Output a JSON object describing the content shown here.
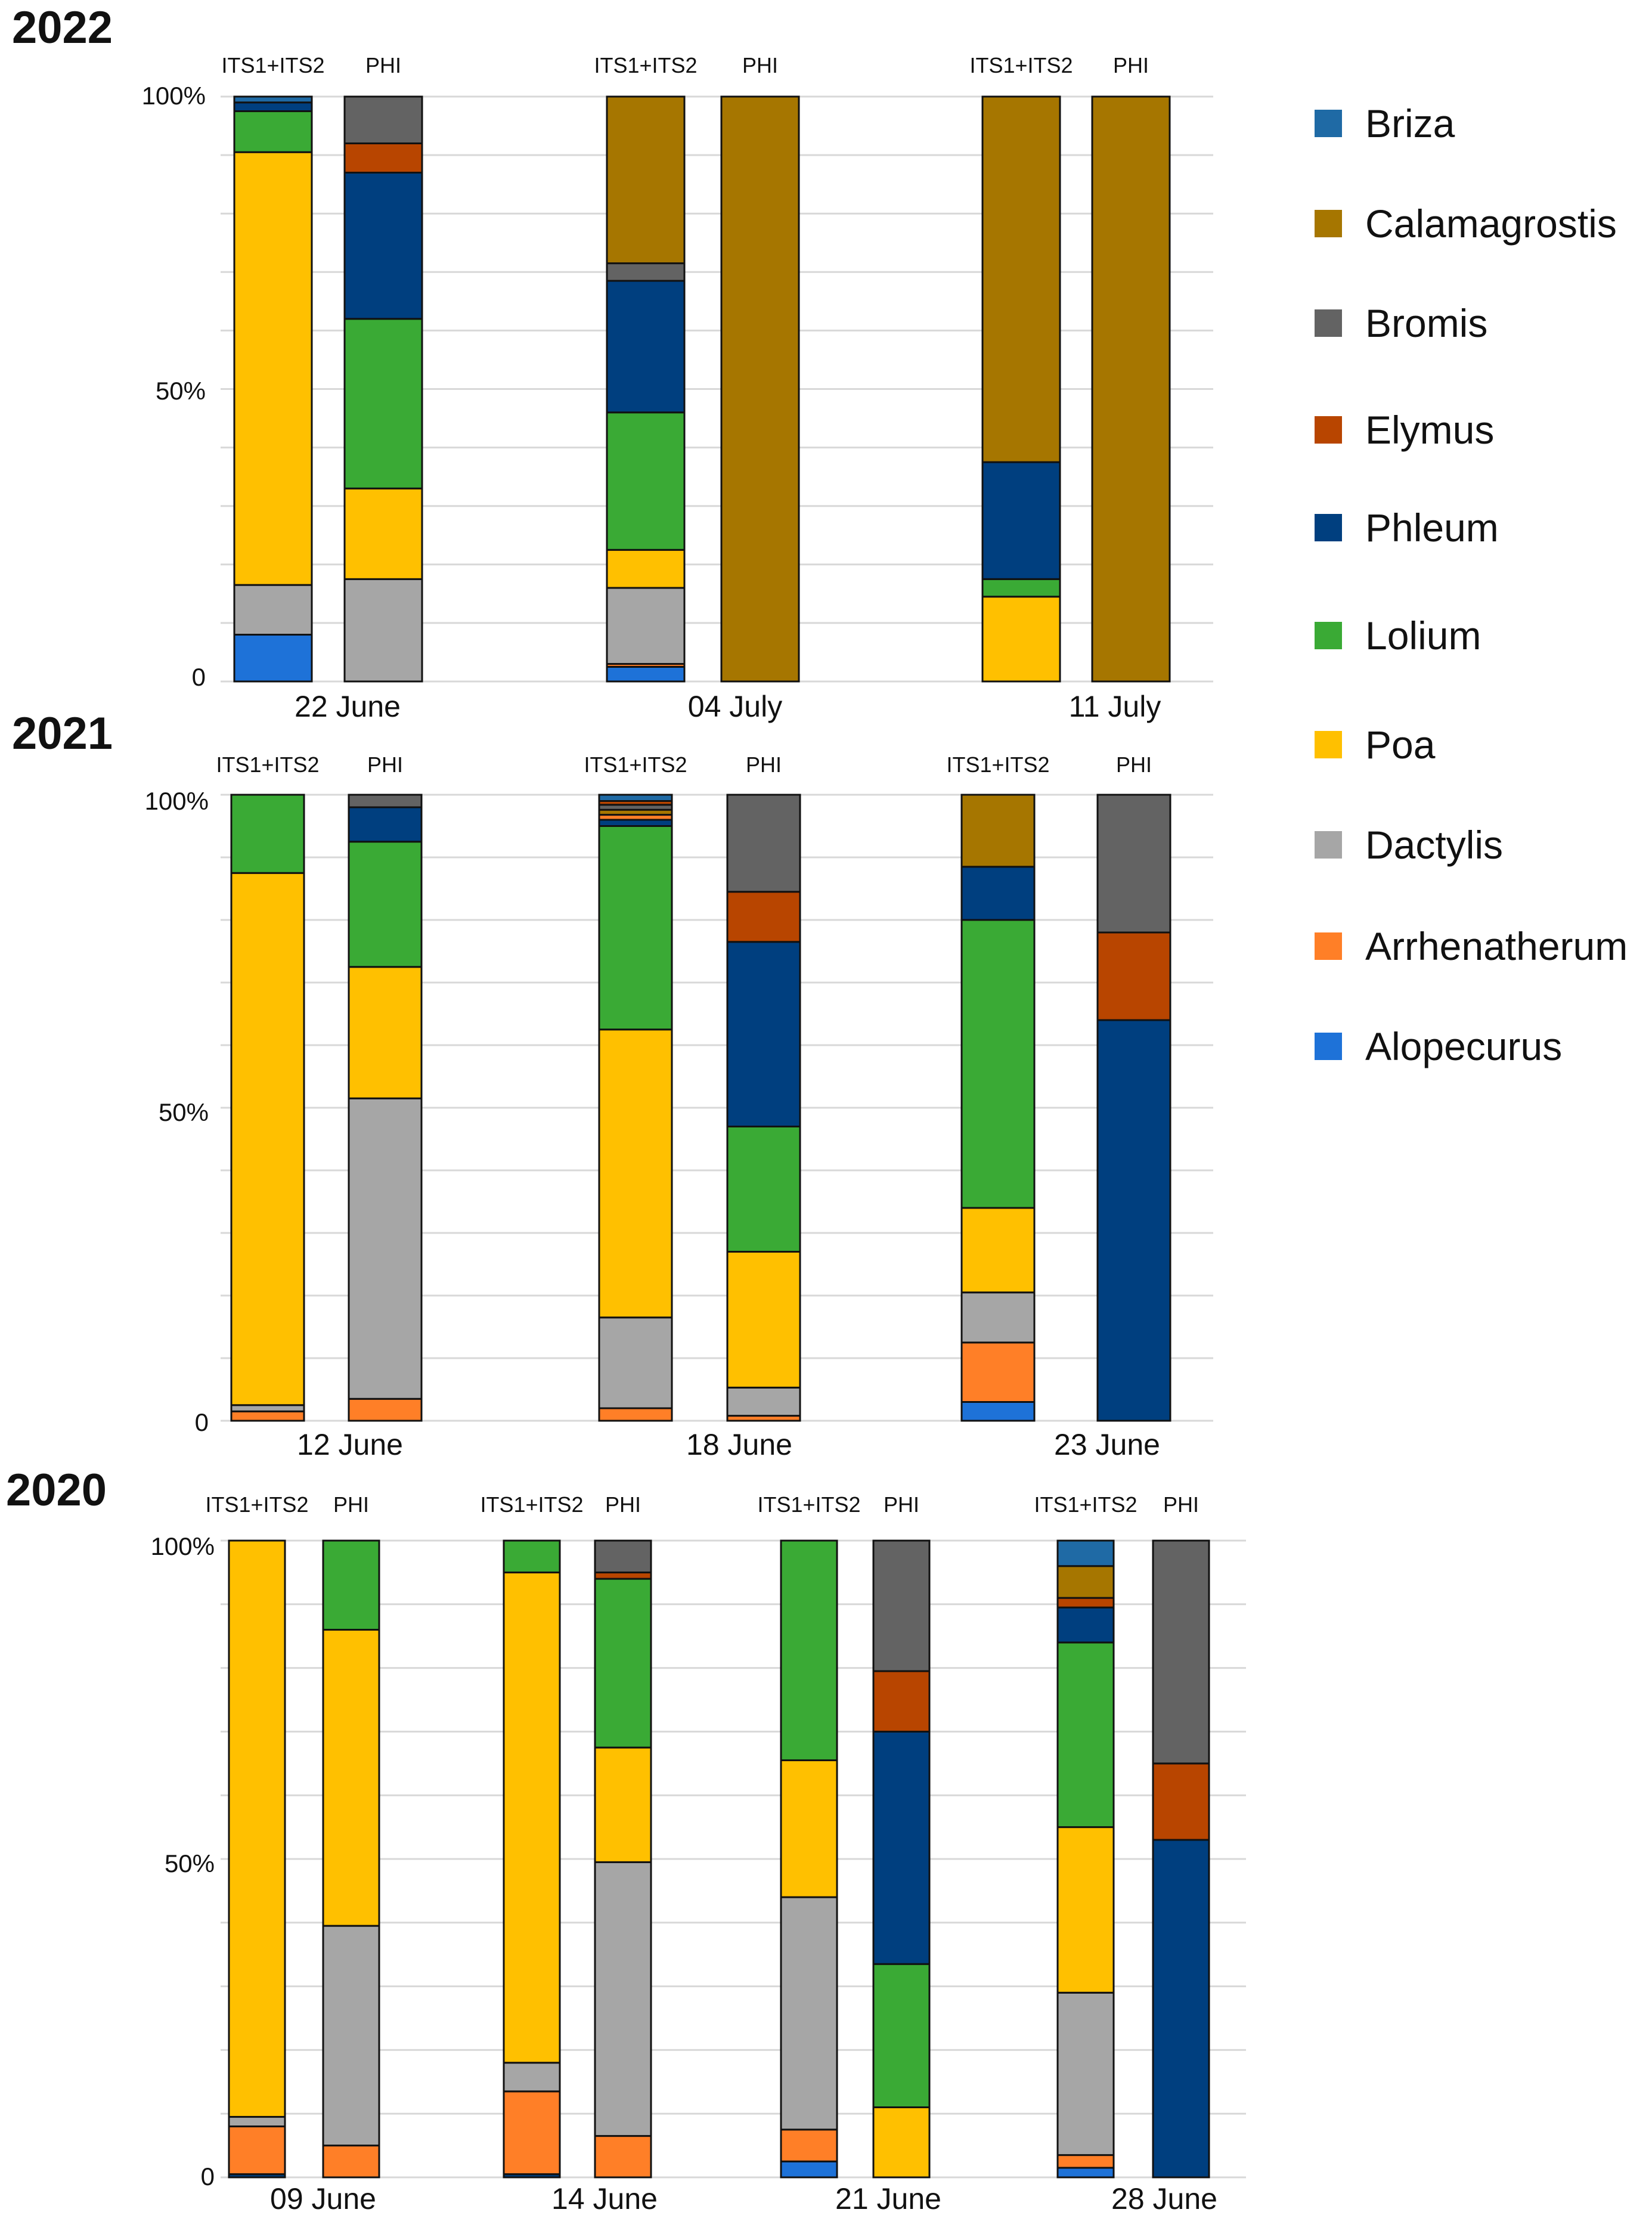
{
  "colors": {
    "Briza": "#1f6aa5",
    "Calamagrostis": "#a67600",
    "Bromis": "#636363",
    "Elymus": "#b84500",
    "Phleum": "#003f7f",
    "Lolium": "#3aaa35",
    "Poa": "#ffc000",
    "Dactylis": "#a6a6a6",
    "Arrhenatherum": "#ff7f27",
    "Alopecurus": "#1e72d8"
  },
  "legend": [
    "Briza",
    "Calamagrostis",
    "Bromis",
    "Elymus",
    "Phleum",
    "Lolium",
    "Poa",
    "Dactylis",
    "Arrhenatherum",
    "Alopecurus"
  ],
  "chart_data": [
    {
      "type": "bar",
      "stacked": true,
      "title": "2022",
      "ylim": [
        0,
        100
      ],
      "yticks": [
        "0",
        "50%",
        "100%"
      ],
      "methods": [
        "ITS1+ITS2",
        "PHI"
      ],
      "groups": [
        {
          "date": "22 June",
          "bars": [
            {
              "method": "ITS1+ITS2",
              "segments": [
                {
                  "taxon": "Alopecurus",
                  "value": 8
                },
                {
                  "taxon": "Dactylis",
                  "value": 8.5
                },
                {
                  "taxon": "Poa",
                  "value": 74
                },
                {
                  "taxon": "Lolium",
                  "value": 7
                },
                {
                  "taxon": "Phleum",
                  "value": 1.5
                },
                {
                  "taxon": "Briza",
                  "value": 1
                }
              ]
            },
            {
              "method": "PHI",
              "segments": [
                {
                  "taxon": "Dactylis",
                  "value": 17.5
                },
                {
                  "taxon": "Poa",
                  "value": 15.5
                },
                {
                  "taxon": "Lolium",
                  "value": 29
                },
                {
                  "taxon": "Phleum",
                  "value": 25
                },
                {
                  "taxon": "Elymus",
                  "value": 5
                },
                {
                  "taxon": "Bromis",
                  "value": 8
                }
              ]
            }
          ]
        },
        {
          "date": "04 July",
          "bars": [
            {
              "method": "ITS1+ITS2",
              "segments": [
                {
                  "taxon": "Alopecurus",
                  "value": 2.5
                },
                {
                  "taxon": "Arrhenatherum",
                  "value": 0.5
                },
                {
                  "taxon": "Dactylis",
                  "value": 13
                },
                {
                  "taxon": "Poa",
                  "value": 6.5
                },
                {
                  "taxon": "Lolium",
                  "value": 23.5
                },
                {
                  "taxon": "Phleum",
                  "value": 22.5
                },
                {
                  "taxon": "Bromis",
                  "value": 3
                },
                {
                  "taxon": "Calamagrostis",
                  "value": 28.5
                }
              ]
            },
            {
              "method": "PHI",
              "segments": [
                {
                  "taxon": "Calamagrostis",
                  "value": 100
                }
              ]
            }
          ]
        },
        {
          "date": "11 July",
          "bars": [
            {
              "method": "ITS1+ITS2",
              "segments": [
                {
                  "taxon": "Poa",
                  "value": 14.5
                },
                {
                  "taxon": "Lolium",
                  "value": 3
                },
                {
                  "taxon": "Phleum",
                  "value": 20
                },
                {
                  "taxon": "Calamagrostis",
                  "value": 62.5
                }
              ]
            },
            {
              "method": "PHI",
              "segments": [
                {
                  "taxon": "Calamagrostis",
                  "value": 100
                }
              ]
            }
          ]
        }
      ]
    },
    {
      "type": "bar",
      "stacked": true,
      "title": "2021",
      "ylim": [
        0,
        100
      ],
      "yticks": [
        "0",
        "50%",
        "100%"
      ],
      "methods": [
        "ITS1+ITS2",
        "PHI"
      ],
      "groups": [
        {
          "date": "12 June",
          "bars": [
            {
              "method": "ITS1+ITS2",
              "segments": [
                {
                  "taxon": "Arrhenatherum",
                  "value": 1.5
                },
                {
                  "taxon": "Dactylis",
                  "value": 1
                },
                {
                  "taxon": "Poa",
                  "value": 85
                },
                {
                  "taxon": "Lolium",
                  "value": 12.5
                }
              ]
            },
            {
              "method": "PHI",
              "segments": [
                {
                  "taxon": "Arrhenatherum",
                  "value": 3.5
                },
                {
                  "taxon": "Dactylis",
                  "value": 48
                },
                {
                  "taxon": "Poa",
                  "value": 21
                },
                {
                  "taxon": "Lolium",
                  "value": 20
                },
                {
                  "taxon": "Phleum",
                  "value": 5.5
                },
                {
                  "taxon": "Bromis",
                  "value": 2
                }
              ]
            }
          ]
        },
        {
          "date": "18 June",
          "bars": [
            {
              "method": "ITS1+ITS2",
              "segments": [
                {
                  "taxon": "Arrhenatherum",
                  "value": 2
                },
                {
                  "taxon": "Dactylis",
                  "value": 14.5
                },
                {
                  "taxon": "Poa",
                  "value": 46
                },
                {
                  "taxon": "Lolium",
                  "value": 32.5
                },
                {
                  "taxon": "Phleum",
                  "value": 1
                },
                {
                  "taxon": "Arrhenatherum",
                  "value": 0.8
                },
                {
                  "taxon": "Calamagrostis",
                  "value": 0.8
                },
                {
                  "taxon": "Bromis",
                  "value": 0.8
                },
                {
                  "taxon": "Elymus",
                  "value": 0.6
                },
                {
                  "taxon": "Briza",
                  "value": 1
                }
              ]
            },
            {
              "method": "PHI",
              "segments": [
                {
                  "taxon": "Arrhenatherum",
                  "value": 0.8
                },
                {
                  "taxon": "Dactylis",
                  "value": 4.5
                },
                {
                  "taxon": "Poa",
                  "value": 21.7
                },
                {
                  "taxon": "Lolium",
                  "value": 20
                },
                {
                  "taxon": "Phleum",
                  "value": 29.5
                },
                {
                  "taxon": "Elymus",
                  "value": 8
                },
                {
                  "taxon": "Bromis",
                  "value": 15.5
                }
              ]
            }
          ]
        },
        {
          "date": "23 June",
          "bars": [
            {
              "method": "ITS1+ITS2",
              "segments": [
                {
                  "taxon": "Alopecurus",
                  "value": 3
                },
                {
                  "taxon": "Arrhenatherum",
                  "value": 9.5
                },
                {
                  "taxon": "Dactylis",
                  "value": 8
                },
                {
                  "taxon": "Poa",
                  "value": 13.5
                },
                {
                  "taxon": "Lolium",
                  "value": 46
                },
                {
                  "taxon": "Phleum",
                  "value": 8.5
                },
                {
                  "taxon": "Calamagrostis",
                  "value": 11.5
                }
              ]
            },
            {
              "method": "PHI",
              "segments": [
                {
                  "taxon": "Phleum",
                  "value": 64
                },
                {
                  "taxon": "Elymus",
                  "value": 14
                },
                {
                  "taxon": "Bromis",
                  "value": 22
                }
              ]
            }
          ]
        }
      ]
    },
    {
      "type": "bar",
      "stacked": true,
      "title": "2020",
      "ylim": [
        0,
        100
      ],
      "yticks": [
        "0",
        "50%",
        "100%"
      ],
      "methods": [
        "ITS1+ITS2",
        "PHI"
      ],
      "groups": [
        {
          "date": "09 June",
          "bars": [
            {
              "method": "ITS1+ITS2",
              "segments": [
                {
                  "taxon": "Phleum",
                  "value": 0.5
                },
                {
                  "taxon": "Arrhenatherum",
                  "value": 7.5
                },
                {
                  "taxon": "Dactylis",
                  "value": 1.5
                },
                {
                  "taxon": "Poa",
                  "value": 90.5
                }
              ]
            },
            {
              "method": "PHI",
              "segments": [
                {
                  "taxon": "Arrhenatherum",
                  "value": 5
                },
                {
                  "taxon": "Dactylis",
                  "value": 34.5
                },
                {
                  "taxon": "Poa",
                  "value": 46.5
                },
                {
                  "taxon": "Lolium",
                  "value": 14
                }
              ]
            }
          ]
        },
        {
          "date": "14 June",
          "bars": [
            {
              "method": "ITS1+ITS2",
              "segments": [
                {
                  "taxon": "Phleum",
                  "value": 0.5
                },
                {
                  "taxon": "Arrhenatherum",
                  "value": 13
                },
                {
                  "taxon": "Dactylis",
                  "value": 4.5
                },
                {
                  "taxon": "Poa",
                  "value": 77
                },
                {
                  "taxon": "Lolium",
                  "value": 5
                }
              ]
            },
            {
              "method": "PHI",
              "segments": [
                {
                  "taxon": "Arrhenatherum",
                  "value": 6.5
                },
                {
                  "taxon": "Dactylis",
                  "value": 43
                },
                {
                  "taxon": "Poa",
                  "value": 18
                },
                {
                  "taxon": "Lolium",
                  "value": 26.5
                },
                {
                  "taxon": "Elymus",
                  "value": 1
                },
                {
                  "taxon": "Bromis",
                  "value": 5
                }
              ]
            }
          ]
        },
        {
          "date": "21 June",
          "bars": [
            {
              "method": "ITS1+ITS2",
              "segments": [
                {
                  "taxon": "Alopecurus",
                  "value": 2.5
                },
                {
                  "taxon": "Arrhenatherum",
                  "value": 5
                },
                {
                  "taxon": "Dactylis",
                  "value": 36.5
                },
                {
                  "taxon": "Poa",
                  "value": 21.5
                },
                {
                  "taxon": "Lolium",
                  "value": 34.5
                }
              ]
            },
            {
              "method": "PHI",
              "segments": [
                {
                  "taxon": "Poa",
                  "value": 11
                },
                {
                  "taxon": "Lolium",
                  "value": 22.5
                },
                {
                  "taxon": "Phleum",
                  "value": 36.5
                },
                {
                  "taxon": "Elymus",
                  "value": 9.5
                },
                {
                  "taxon": "Bromis",
                  "value": 20.5
                }
              ]
            }
          ]
        },
        {
          "date": "28 June",
          "bars": [
            {
              "method": "ITS1+ITS2",
              "segments": [
                {
                  "taxon": "Alopecurus",
                  "value": 1.5
                },
                {
                  "taxon": "Arrhenatherum",
                  "value": 2
                },
                {
                  "taxon": "Dactylis",
                  "value": 25.5
                },
                {
                  "taxon": "Poa",
                  "value": 26
                },
                {
                  "taxon": "Lolium",
                  "value": 29
                },
                {
                  "taxon": "Phleum",
                  "value": 5.5
                },
                {
                  "taxon": "Elymus",
                  "value": 1.5
                },
                {
                  "taxon": "Calamagrostis",
                  "value": 5
                },
                {
                  "taxon": "Briza",
                  "value": 4
                }
              ]
            },
            {
              "method": "PHI",
              "segments": [
                {
                  "taxon": "Phleum",
                  "value": 53
                },
                {
                  "taxon": "Elymus",
                  "value": 12
                },
                {
                  "taxon": "Bromis",
                  "value": 35
                }
              ]
            }
          ]
        }
      ]
    }
  ]
}
